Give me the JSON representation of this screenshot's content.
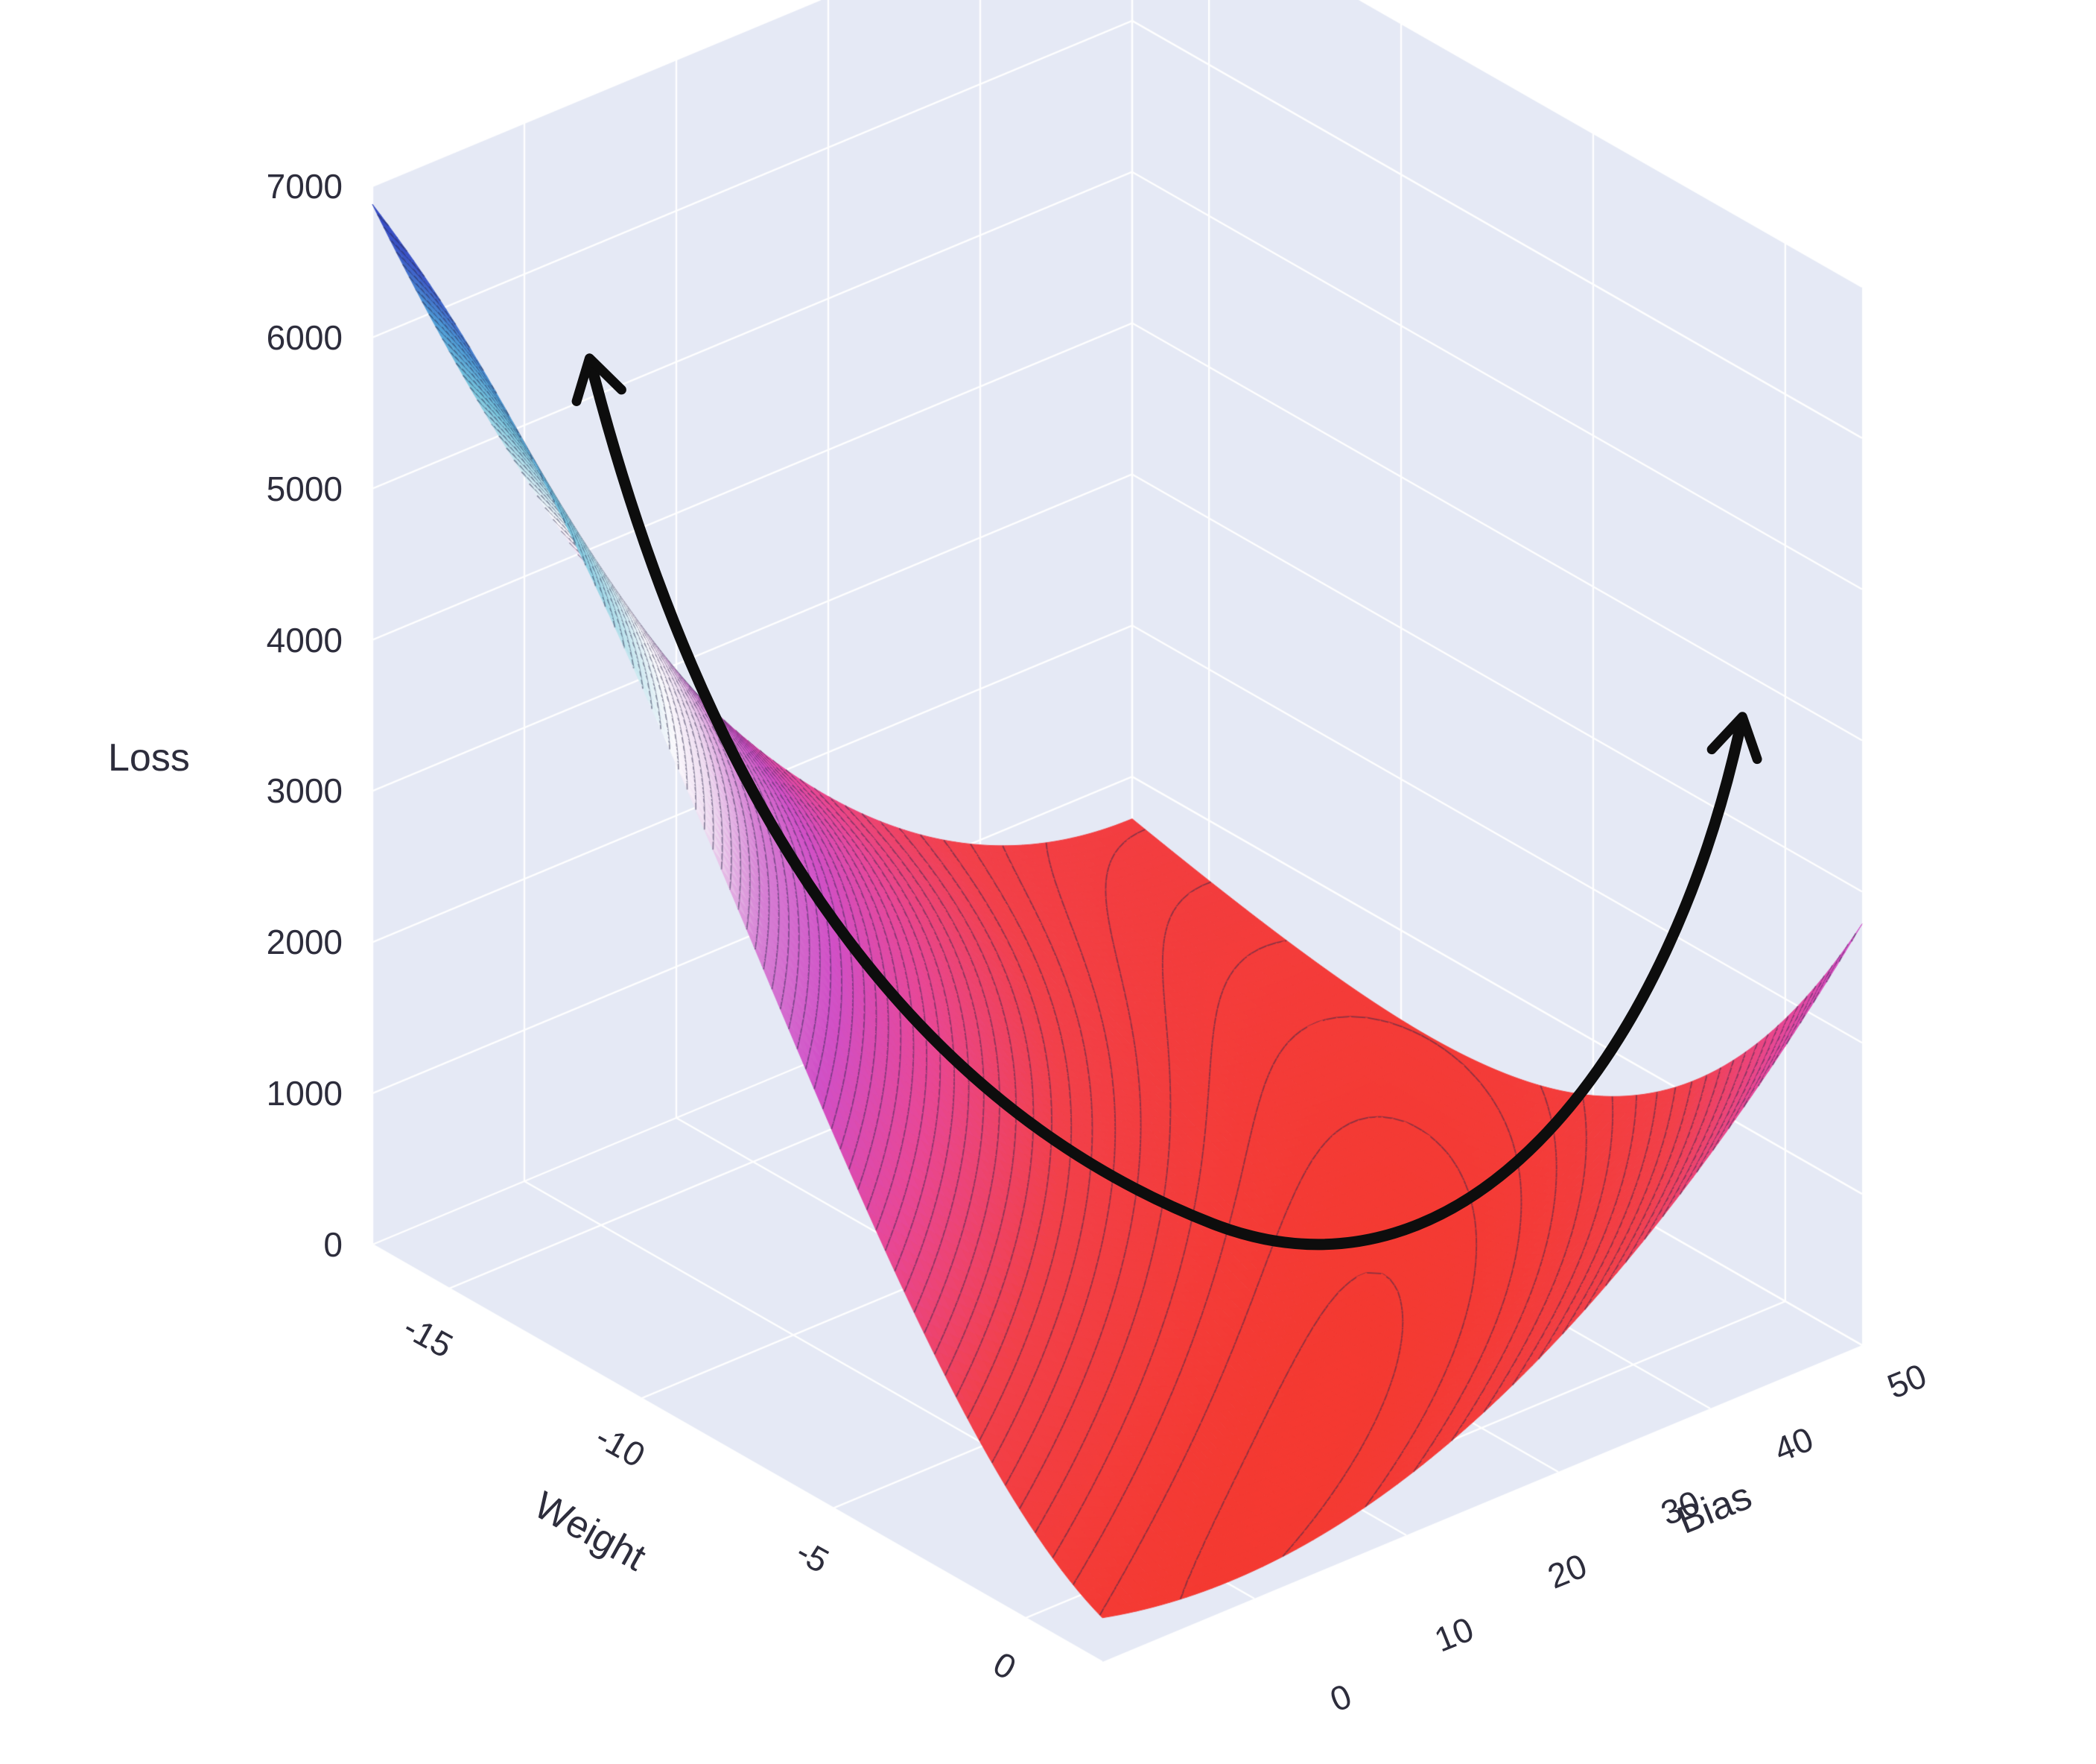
{
  "figure": {
    "kind": "3d-surface-plot",
    "background": "#ffffff",
    "pane_color": "#e5e9f5",
    "grid_color": "#ffffff",
    "label_color": "#2d2d3c"
  },
  "chart_data": {
    "type": "surface",
    "title": "",
    "axes": {
      "x": {
        "label": "Weight",
        "range": [
          -17,
          2
        ],
        "tickvals": [
          -15,
          -10,
          -5,
          0
        ],
        "ticks": [
          "-15",
          "-10",
          "-5",
          "0"
        ]
      },
      "y": {
        "label": "Bias",
        "range": [
          0,
          50
        ],
        "tickvals": [
          0,
          10,
          20,
          30,
          40,
          50
        ],
        "ticks": [
          "0",
          "10",
          "20",
          "30",
          "40",
          "50"
        ]
      },
      "z": {
        "label": "Loss",
        "range": [
          0,
          7000
        ],
        "tickvals": [
          0,
          1000,
          2000,
          3000,
          4000,
          5000,
          6000,
          7000
        ],
        "ticks": [
          "0",
          "1000",
          "2000",
          "3000",
          "4000",
          "5000",
          "6000",
          "7000"
        ]
      }
    },
    "sample_points": {
      "weight": [
        -17,
        -12,
        -7,
        -2,
        2
      ],
      "bias": [
        0,
        10,
        20,
        30,
        40,
        50
      ],
      "loss": [
        [
          6881,
          4663,
          2939,
          1707,
          967,
          721
        ],
        [
          5508,
          3612,
          2160,
          1151,
          584,
          460
        ],
        [
          3385,
          2015,
          1037,
          452,
          260,
          460
        ],
        [
          1270,
          573,
          218,
          206,
          536,
          1208
        ],
        [
          292,
          186,
          383,
          881,
          1683,
          2787
        ]
      ]
    },
    "surface_model": {
      "description": "Convex loss valley: loss(u,v) = A(u)*(v-vc(u))^2 + B(u), u = normalized Weight, v = normalized Bias, scaled by z_max",
      "a0": 0.88,
      "a1": 0.34,
      "vc_scale": 0.83,
      "vc_pow": 2.2,
      "b0": 0.018,
      "b1": 0.085,
      "b2_k": 0.04,
      "b2_thresh": 0.55,
      "z_max": 7000
    },
    "colorscale": [
      {
        "t": 0.0,
        "color": "#f5382c"
      },
      {
        "t": 0.15,
        "color": "#f2404a"
      },
      {
        "t": 0.27,
        "color": "#e84796"
      },
      {
        "t": 0.38,
        "color": "#d14fc6"
      },
      {
        "t": 0.48,
        "color": "#d67fd4"
      },
      {
        "t": 0.56,
        "color": "#eedaf0"
      },
      {
        "t": 0.62,
        "color": "#fbfafd"
      },
      {
        "t": 0.7,
        "color": "#b9e2ec"
      },
      {
        "t": 0.78,
        "color": "#76c4dc"
      },
      {
        "t": 0.86,
        "color": "#4d9bd6"
      },
      {
        "t": 0.94,
        "color": "#3c55c6"
      },
      {
        "t": 1.0,
        "color": "#3343c0"
      }
    ],
    "contours": {
      "shown": true,
      "z_interval": 100,
      "line_color": "#28284a"
    },
    "annotation_arrow": {
      "shape": "curved-double-headed-arrow",
      "color": "#0d0d0d",
      "description": "Curved arrow tracing the loss valley: high loss at upper left, descending through the minimum, rising again to the right"
    }
  }
}
